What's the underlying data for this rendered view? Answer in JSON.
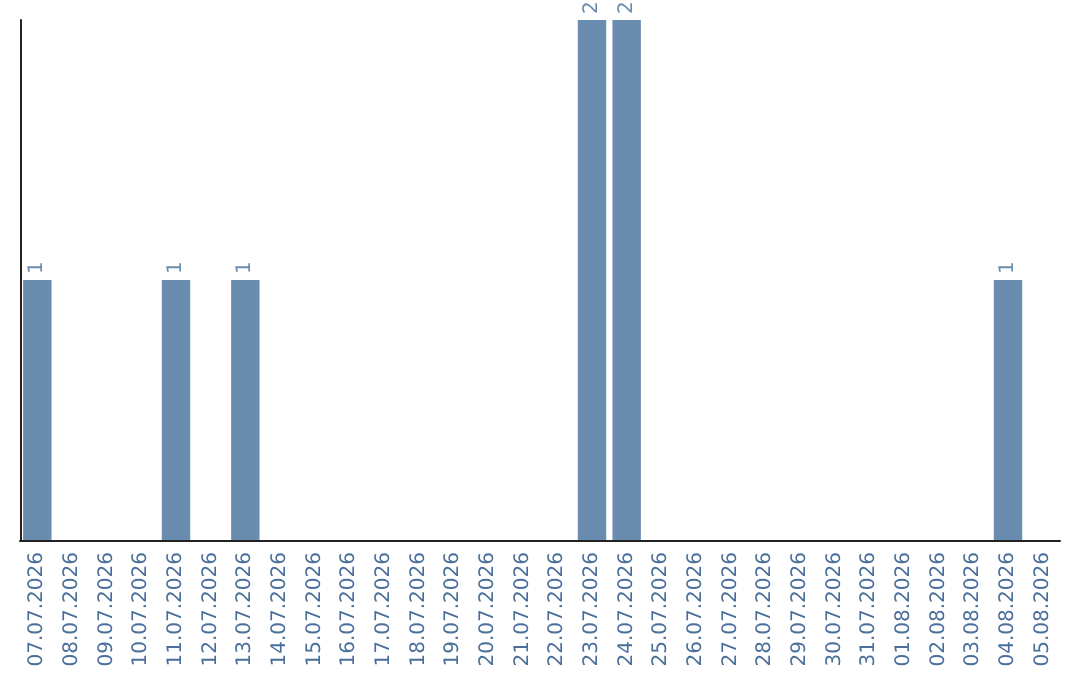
{
  "chart_data": {
    "type": "bar",
    "categories": [
      "07.07.2026",
      "08.07.2026",
      "09.07.2026",
      "10.07.2026",
      "11.07.2026",
      "12.07.2026",
      "13.07.2026",
      "14.07.2026",
      "15.07.2026",
      "16.07.2026",
      "17.07.2026",
      "18.07.2026",
      "19.07.2026",
      "20.07.2026",
      "21.07.2026",
      "22.07.2026",
      "23.07.2026",
      "24.07.2026",
      "25.07.2026",
      "26.07.2026",
      "27.07.2026",
      "28.07.2026",
      "29.07.2026",
      "30.07.2026",
      "31.07.2026",
      "01.08.2026",
      "02.08.2026",
      "03.08.2026",
      "04.08.2026",
      "05.08.2026"
    ],
    "values": [
      1,
      0,
      0,
      0,
      1,
      0,
      1,
      0,
      0,
      0,
      0,
      0,
      0,
      0,
      0,
      0,
      2,
      2,
      0,
      0,
      0,
      0,
      0,
      0,
      0,
      0,
      0,
      0,
      1,
      0
    ],
    "color": "#6a8caf",
    "ylim": [
      0,
      2
    ],
    "value_labels": [
      "1",
      null,
      null,
      null,
      "1",
      null,
      "1",
      null,
      null,
      null,
      null,
      null,
      null,
      null,
      null,
      null,
      "2",
      "2",
      null,
      null,
      null,
      null,
      null,
      null,
      null,
      null,
      null,
      null,
      "1",
      null
    ],
    "grid": false,
    "tick_labels": "x"
  }
}
